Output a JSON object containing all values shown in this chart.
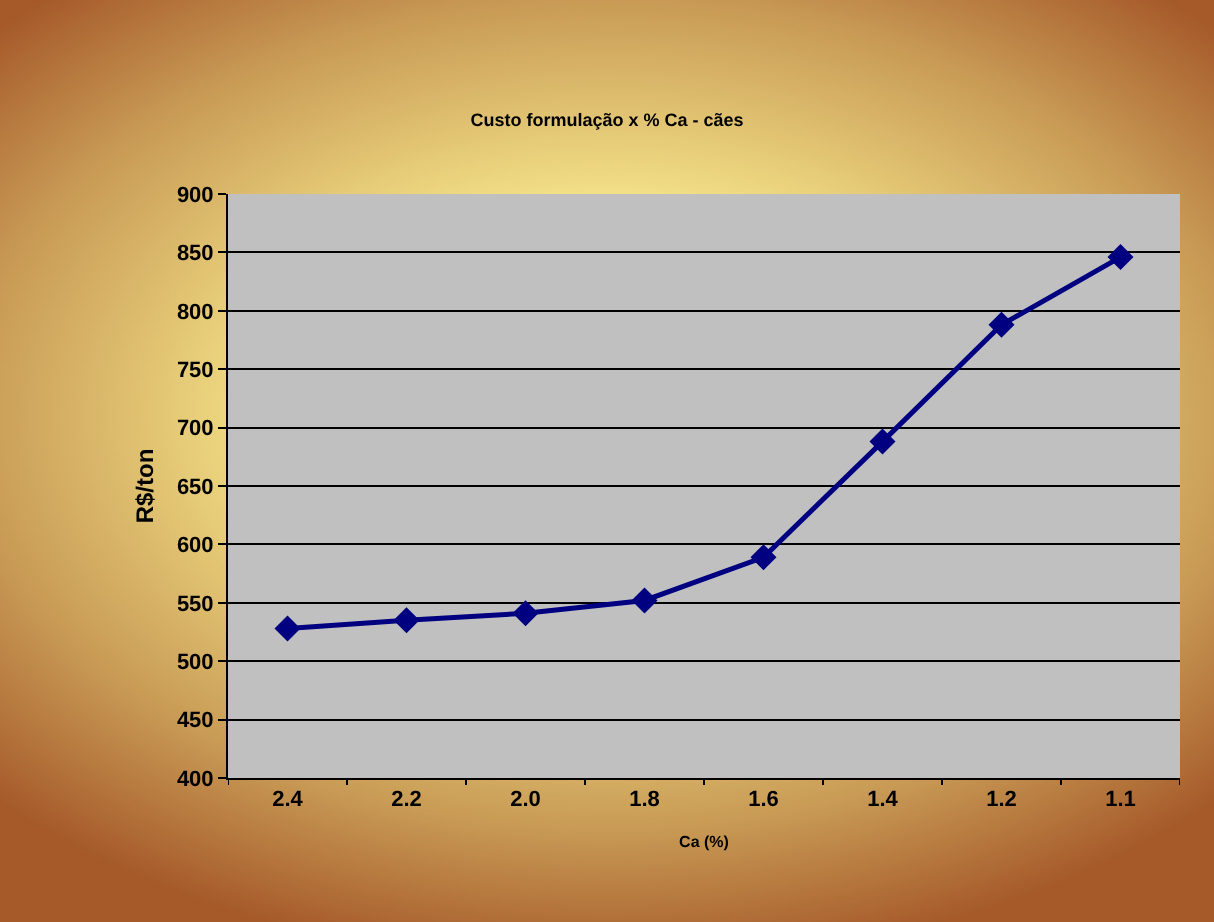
{
  "chart_data": {
    "type": "line",
    "title": "Custo formulação x % Ca - cães",
    "xlabel": "Ca (%)",
    "ylabel": "R$/ton",
    "categories": [
      "2.4",
      "2.2",
      "2.0",
      "1.8",
      "1.6",
      "1.4",
      "1.2",
      "1.1"
    ],
    "series": [
      {
        "color": "#000080",
        "values": [
          528,
          535,
          541,
          552,
          589,
          688,
          788,
          846
        ]
      }
    ],
    "ylim": [
      400,
      900
    ],
    "yticks": [
      400,
      450,
      500,
      550,
      600,
      650,
      700,
      750,
      800,
      850,
      900
    ],
    "grid": "y",
    "marker": "diamond",
    "line_style": "solid"
  }
}
